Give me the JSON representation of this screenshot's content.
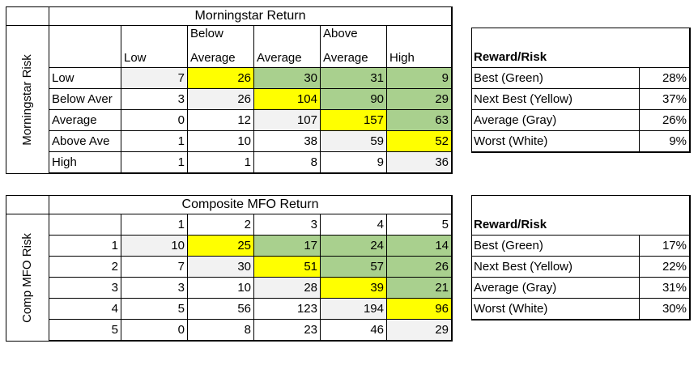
{
  "table1": {
    "title": "Morningstar Return",
    "side_label": "Morningstar Risk",
    "col_headers": [
      [
        "",
        "Low"
      ],
      [
        "Below",
        "Average"
      ],
      [
        "",
        "Average"
      ],
      [
        "Above",
        "Average"
      ],
      [
        "",
        "High"
      ]
    ],
    "rows": [
      {
        "label": "Low",
        "values": [
          "7",
          "26",
          "30",
          "31",
          "9"
        ],
        "colors": [
          "gray",
          "yellow",
          "green",
          "green",
          "green"
        ]
      },
      {
        "label": "Below Aver",
        "values": [
          "3",
          "26",
          "104",
          "90",
          "29"
        ],
        "colors": [
          "white",
          "gray",
          "yellow",
          "green",
          "green"
        ]
      },
      {
        "label": "Average",
        "values": [
          "0",
          "12",
          "107",
          "157",
          "63"
        ],
        "colors": [
          "white",
          "white",
          "gray",
          "yellow",
          "green"
        ]
      },
      {
        "label": "Above Ave",
        "values": [
          "1",
          "10",
          "38",
          "59",
          "52"
        ],
        "colors": [
          "white",
          "white",
          "white",
          "gray",
          "yellow"
        ]
      },
      {
        "label": "High",
        "values": [
          "1",
          "1",
          "8",
          "9",
          "36"
        ],
        "colors": [
          "white",
          "white",
          "white",
          "white",
          "gray"
        ]
      }
    ]
  },
  "legend1": {
    "title": "Reward/Risk",
    "rows": [
      {
        "label": "Best (Green)",
        "value": "28%"
      },
      {
        "label": "Next Best (Yellow)",
        "value": "37%"
      },
      {
        "label": "Average (Gray)",
        "value": "26%"
      },
      {
        "label": "Worst (White)",
        "value": "9%"
      }
    ]
  },
  "table2": {
    "title": "Composite MFO Return",
    "side_label": "Comp MFO Risk",
    "col_headers": [
      "1",
      "2",
      "3",
      "4",
      "5"
    ],
    "rows": [
      {
        "label": "1",
        "values": [
          "10",
          "25",
          "17",
          "24",
          "14"
        ],
        "colors": [
          "gray",
          "yellow",
          "green",
          "green",
          "green"
        ]
      },
      {
        "label": "2",
        "values": [
          "7",
          "30",
          "51",
          "57",
          "26"
        ],
        "colors": [
          "white",
          "gray",
          "yellow",
          "green",
          "green"
        ]
      },
      {
        "label": "3",
        "values": [
          "3",
          "10",
          "28",
          "39",
          "21"
        ],
        "colors": [
          "white",
          "white",
          "gray",
          "yellow",
          "green"
        ]
      },
      {
        "label": "4",
        "values": [
          "5",
          "56",
          "123",
          "194",
          "96"
        ],
        "colors": [
          "white",
          "white",
          "white",
          "gray",
          "yellow"
        ]
      },
      {
        "label": "5",
        "values": [
          "0",
          "8",
          "23",
          "46",
          "29"
        ],
        "colors": [
          "white",
          "white",
          "white",
          "white",
          "gray"
        ]
      }
    ]
  },
  "legend2": {
    "title": "Reward/Risk",
    "rows": [
      {
        "label": "Best (Green)",
        "value": "17%"
      },
      {
        "label": "Next Best (Yellow)",
        "value": "22%"
      },
      {
        "label": "Average (Gray)",
        "value": "31%"
      },
      {
        "label": "Worst (White)",
        "value": "30%"
      }
    ]
  },
  "colors": {
    "green": "#a9d08e",
    "yellow": "#ffff00",
    "gray": "#f2f2f2",
    "white": "#ffffff"
  }
}
